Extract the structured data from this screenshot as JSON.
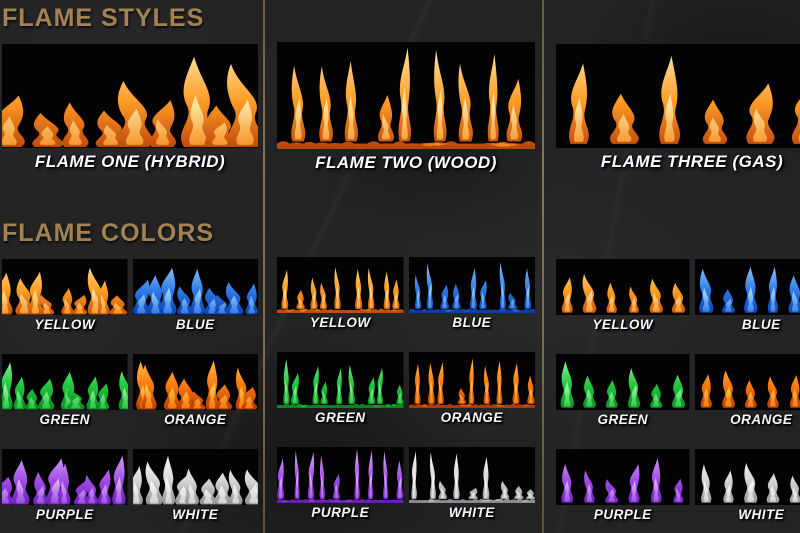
{
  "headings": {
    "styles": "FLAME STYLES",
    "colors": "FLAME COLORS"
  },
  "theme": {
    "background": "#232323",
    "heading_color": "#a28253",
    "divider_color": "#7d6a47",
    "label_color": "#ffffff",
    "swatch_background": "#030303"
  },
  "columns": [
    {
      "id": "hybrid",
      "style_label": "FLAME ONE (HYBRID)"
    },
    {
      "id": "wood",
      "style_label": "FLAME TWO (WOOD)"
    },
    {
      "id": "gas",
      "style_label": "FLAME THREE (GAS)"
    }
  ],
  "flame_colors": [
    {
      "label": "YELLOW",
      "deep": "#c84f08",
      "base": "#ffa126",
      "tip": "#ffe9a8"
    },
    {
      "label": "BLUE",
      "deep": "#0a3fae",
      "base": "#2f7de8",
      "tip": "#a8dcff"
    },
    {
      "label": "GREEN",
      "deep": "#0a8a22",
      "base": "#22c93e",
      "tip": "#a6ffb0"
    },
    {
      "label": "ORANGE",
      "deep": "#b33a00",
      "base": "#ff7a10",
      "tip": "#ffd24a"
    },
    {
      "label": "PURPLE",
      "deep": "#6a1fb8",
      "base": "#a24de6",
      "tip": "#e2b8ff"
    },
    {
      "label": "WHITE",
      "deep": "#8f8f8f",
      "base": "#d8d8d8",
      "tip": "#ffffff"
    }
  ],
  "photo_palette": {
    "deep": "#c1470a",
    "base": "#ff9d26",
    "tip": "#ffeeb0"
  }
}
